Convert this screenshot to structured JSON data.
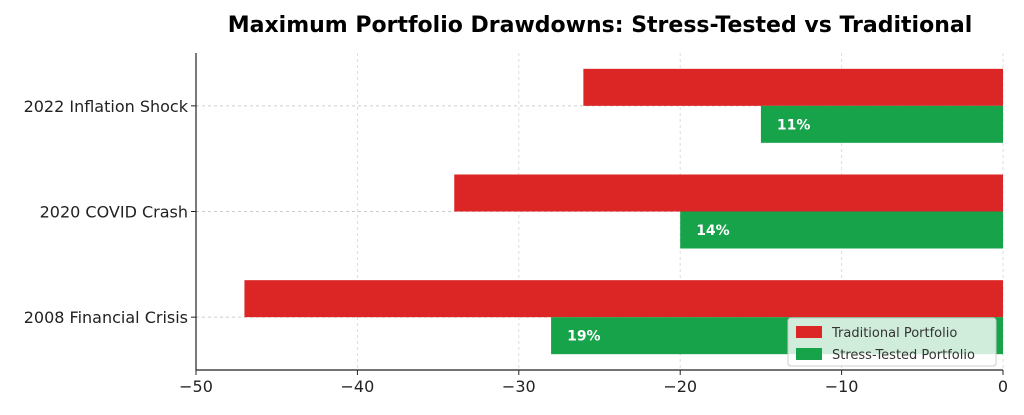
{
  "chart_data": {
    "type": "bar",
    "orientation": "horizontal",
    "title": "Maximum Portfolio Drawdowns: Stress-Tested vs Traditional",
    "xlabel": "",
    "ylabel": "",
    "categories": [
      "2022 Inflation Shock",
      "2020 COVID Crash",
      "2008 Financial Crisis"
    ],
    "series": [
      {
        "name": "Traditional Portfolio",
        "values": [
          -26,
          -34,
          -47
        ],
        "color": "#dc2626",
        "labels": [
          "",
          "",
          ""
        ]
      },
      {
        "name": "Stress-Tested Portfolio",
        "values": [
          -15,
          -20,
          -28
        ],
        "color": "#16a34a",
        "labels": [
          "11%",
          "14%",
          "19%"
        ]
      }
    ],
    "xlim": [
      -50,
      0
    ],
    "xticks": [
      -50,
      -40,
      -30,
      -20,
      -10,
      0
    ],
    "xtick_labels": [
      "−50",
      "−40",
      "−30",
      "−20",
      "−10",
      "0"
    ],
    "grid": true,
    "legend_position": "bottom-right"
  }
}
